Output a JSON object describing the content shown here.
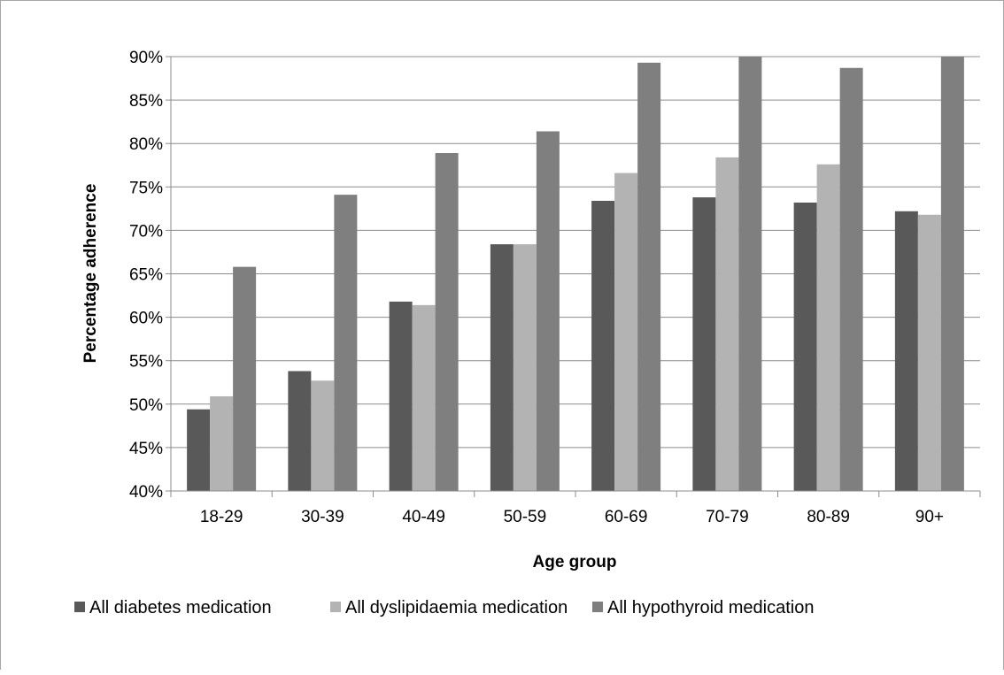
{
  "chart_data": {
    "type": "bar",
    "categories": [
      "18-29",
      "30-39",
      "40-49",
      "50-59",
      "60-69",
      "70-79",
      "80-89",
      "90+"
    ],
    "series": [
      {
        "name": "All diabetes medication",
        "color": "#595959",
        "values": [
          49.4,
          53.8,
          61.8,
          68.4,
          73.4,
          73.8,
          73.2,
          72.2
        ]
      },
      {
        "name": "All dyslipidaemia medication",
        "color": "#b3b3b3",
        "values": [
          50.9,
          52.7,
          61.4,
          68.4,
          76.6,
          78.4,
          77.6,
          71.8
        ]
      },
      {
        "name": "All hypothyroid medication",
        "color": "#7f7f7f",
        "values": [
          65.8,
          74.1,
          78.9,
          81.4,
          89.3,
          90.0,
          88.7,
          90.0
        ]
      }
    ],
    "yticks": [
      "40%",
      "45%",
      "50%",
      "55%",
      "60%",
      "65%",
      "70%",
      "75%",
      "80%",
      "85%",
      "90%"
    ],
    "ylim": [
      40,
      90
    ],
    "xlabel": "Age group",
    "ylabel": "Percentage adherence",
    "grid": true,
    "legend_position": "bottom"
  }
}
